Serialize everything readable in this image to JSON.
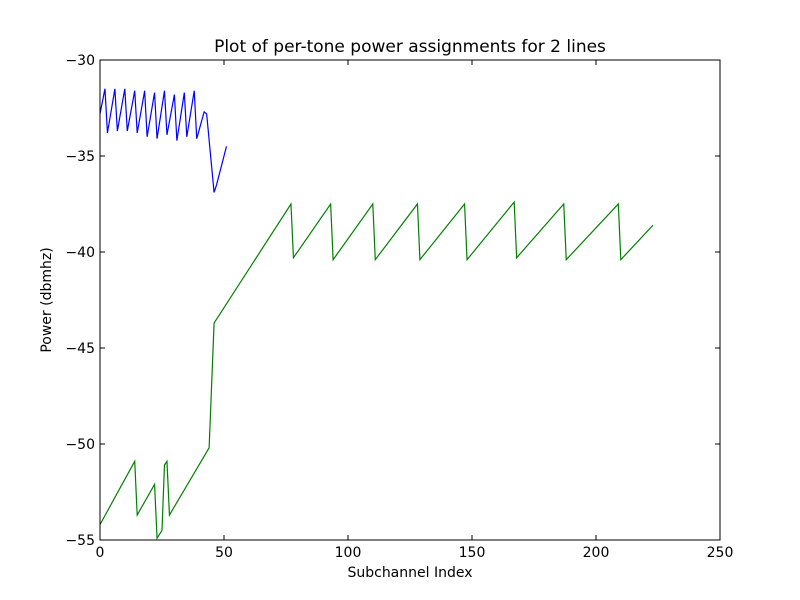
{
  "chart_data": {
    "type": "line",
    "title": "Plot of per-tone power assignments for 2 lines",
    "xlabel": "Subchannel Index",
    "ylabel": "Power (dbmhz)",
    "xlim": [
      0,
      250
    ],
    "ylim": [
      -55,
      -30
    ],
    "xticks": [
      0,
      50,
      100,
      150,
      200,
      250
    ],
    "yticks": [
      -30,
      -35,
      -40,
      -45,
      -50,
      -55
    ],
    "grid": false,
    "legend": "none",
    "series": [
      {
        "color": "#0000ff",
        "x": [
          0,
          2,
          3,
          6,
          7,
          10,
          11,
          14,
          15,
          18,
          19,
          22,
          23,
          26,
          27,
          30,
          31,
          34,
          35,
          38,
          39,
          42,
          43,
          46,
          47,
          51
        ],
        "y": [
          -32.8,
          -31.5,
          -33.8,
          -31.5,
          -33.7,
          -31.5,
          -33.7,
          -31.6,
          -33.8,
          -31.6,
          -34.0,
          -31.7,
          -34.1,
          -31.6,
          -33.9,
          -31.8,
          -34.2,
          -31.7,
          -34.0,
          -31.6,
          -34.1,
          -32.7,
          -32.8,
          -36.9,
          -36.5,
          -34.5
        ]
      },
      {
        "color": "#008000",
        "x": [
          0,
          14,
          15,
          22,
          23,
          25,
          26,
          27,
          28,
          44,
          46,
          77,
          78,
          93,
          94,
          110,
          111,
          128,
          129,
          147,
          148,
          167,
          168,
          187,
          188,
          209,
          210,
          223
        ],
        "y": [
          -54.2,
          -50.9,
          -53.7,
          -52.1,
          -54.9,
          -54.5,
          -51.1,
          -50.9,
          -53.7,
          -50.2,
          -43.7,
          -37.5,
          -40.3,
          -37.5,
          -40.4,
          -37.5,
          -40.4,
          -37.5,
          -40.4,
          -37.5,
          -40.4,
          -37.4,
          -40.3,
          -37.5,
          -40.4,
          -37.5,
          -40.4,
          -38.6
        ]
      }
    ]
  }
}
